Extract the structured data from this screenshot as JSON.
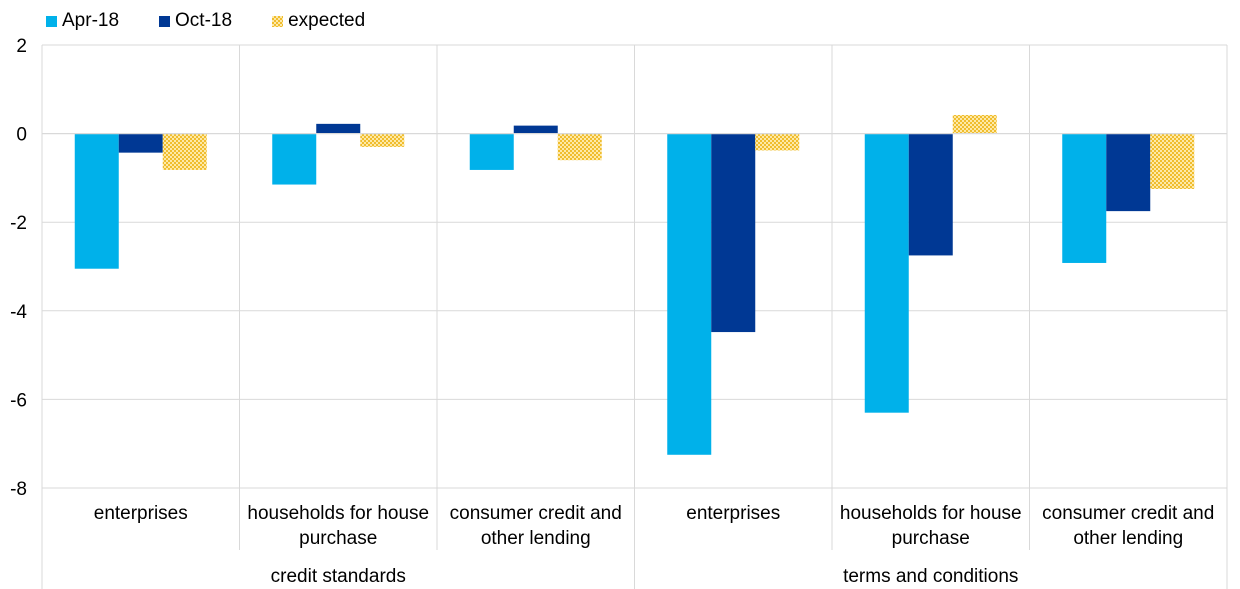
{
  "chart_data": {
    "type": "bar",
    "title": "",
    "xlabel": "",
    "ylabel": "",
    "ylim": [
      -8,
      2
    ],
    "yticks": [
      2,
      0,
      -2,
      -4,
      -6,
      -8
    ],
    "grid": true,
    "legend_position": "top-left",
    "groups": [
      {
        "label": "credit standards",
        "categories": [
          "enterprises",
          "households for house purchase",
          "consumer credit and other lending"
        ]
      },
      {
        "label": "terms and conditions",
        "categories": [
          "enterprises",
          "households for house purchase",
          "consumer credit and other lending"
        ]
      }
    ],
    "category_lines": [
      [
        "enterprises"
      ],
      [
        "households for house",
        "purchase"
      ],
      [
        "consumer credit and",
        "other lending"
      ],
      [
        "enterprises"
      ],
      [
        "households for house",
        "purchase"
      ],
      [
        "consumer credit and",
        "other lending"
      ]
    ],
    "series": [
      {
        "name": "Apr-18",
        "color": "#00b1ea",
        "pattern": "solid",
        "values": [
          -3.05,
          -1.15,
          -0.82,
          -7.25,
          -6.3,
          -2.92
        ]
      },
      {
        "name": "Oct-18",
        "color": "#003894",
        "pattern": "solid",
        "values": [
          -0.43,
          0.22,
          0.18,
          -4.48,
          -2.75,
          -1.75
        ]
      },
      {
        "name": "expected",
        "color": "#f5c93c",
        "pattern": "dotted",
        "values": [
          -0.82,
          -0.3,
          -0.6,
          -0.38,
          0.42,
          -1.25
        ]
      }
    ]
  }
}
